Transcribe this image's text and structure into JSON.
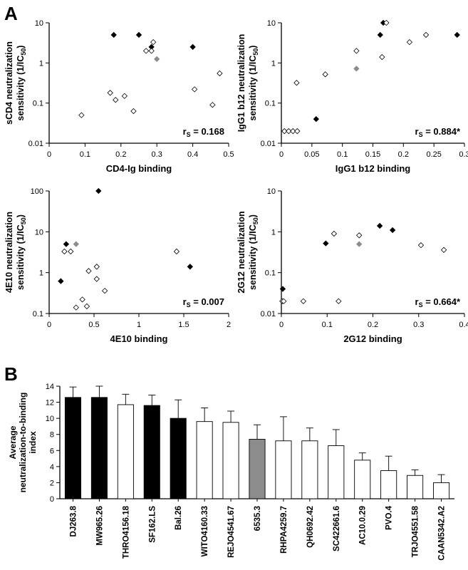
{
  "panels": {
    "A": "A",
    "B": "B"
  },
  "chart_data": [
    {
      "id": "p1",
      "type": "scatter",
      "log_y": true,
      "xlabel": "CD4-Ig binding",
      "ylabel_lines": [
        "sCD4 neutralization",
        "sensitivity (1/IC",
        "50",
        ")"
      ],
      "stat_prefix": "r",
      "stat_sub": "S",
      "stat_value": " = 0.168",
      "xlim": [
        0,
        0.5
      ],
      "xticks": [
        0,
        0.1,
        0.2,
        0.3,
        0.4,
        0.5
      ],
      "xtick_labels": [
        "0",
        "0.1",
        "0.2",
        "0.3",
        "0.4",
        "0.5"
      ],
      "ylim": [
        0.01,
        10
      ],
      "yticks": [
        0.01,
        0.1,
        1,
        10
      ],
      "ytick_labels": [
        "0.01",
        "0.1",
        "1",
        "10"
      ],
      "points": [
        {
          "x": 0.18,
          "y": 5,
          "kind": "black"
        },
        {
          "x": 0.25,
          "y": 5,
          "kind": "black"
        },
        {
          "x": 0.285,
          "y": 2.5,
          "kind": "black"
        },
        {
          "x": 0.4,
          "y": 2.5,
          "kind": "black"
        },
        {
          "x": 0.29,
          "y": 3.3,
          "kind": "open"
        },
        {
          "x": 0.27,
          "y": 2.0,
          "kind": "open"
        },
        {
          "x": 0.285,
          "y": 2.0,
          "kind": "open"
        },
        {
          "x": 0.3,
          "y": 1.25,
          "kind": "grey"
        },
        {
          "x": 0.475,
          "y": 0.55,
          "kind": "open"
        },
        {
          "x": 0.17,
          "y": 0.18,
          "kind": "open"
        },
        {
          "x": 0.21,
          "y": 0.15,
          "kind": "open"
        },
        {
          "x": 0.185,
          "y": 0.12,
          "kind": "open"
        },
        {
          "x": 0.235,
          "y": 0.063,
          "kind": "open"
        },
        {
          "x": 0.09,
          "y": 0.05,
          "kind": "open"
        },
        {
          "x": 0.405,
          "y": 0.22,
          "kind": "open"
        },
        {
          "x": 0.455,
          "y": 0.09,
          "kind": "open"
        }
      ]
    },
    {
      "id": "p2",
      "type": "scatter",
      "log_y": true,
      "xlabel": "IgG1 b12 binding",
      "ylabel_lines": [
        "IgG1 b12 neutralization",
        "sensitivity (1/IC",
        "50",
        ")"
      ],
      "stat_prefix": "r",
      "stat_sub": "S",
      "stat_value": " = 0.884*",
      "xlim": [
        0,
        0.3
      ],
      "xticks": [
        0,
        0.05,
        0.1,
        0.15,
        0.2,
        0.25,
        0.3
      ],
      "xtick_labels": [
        "0",
        "0.05",
        "0.1",
        "0.15",
        "0.2",
        "0.25",
        "0.3"
      ],
      "ylim": [
        0.01,
        10
      ],
      "yticks": [
        0.01,
        0.1,
        1,
        10
      ],
      "ytick_labels": [
        "0.01",
        "0.1",
        "1",
        "10"
      ],
      "points": [
        {
          "x": 0.005,
          "y": 0.02,
          "kind": "open"
        },
        {
          "x": 0.012,
          "y": 0.02,
          "kind": "open"
        },
        {
          "x": 0.019,
          "y": 0.02,
          "kind": "open"
        },
        {
          "x": 0.026,
          "y": 0.02,
          "kind": "open"
        },
        {
          "x": 0.057,
          "y": 0.04,
          "kind": "black"
        },
        {
          "x": 0.025,
          "y": 0.32,
          "kind": "open"
        },
        {
          "x": 0.072,
          "y": 0.52,
          "kind": "open"
        },
        {
          "x": 0.123,
          "y": 0.72,
          "kind": "grey"
        },
        {
          "x": 0.123,
          "y": 2.0,
          "kind": "open"
        },
        {
          "x": 0.162,
          "y": 5.0,
          "kind": "black"
        },
        {
          "x": 0.167,
          "y": 10,
          "kind": "black"
        },
        {
          "x": 0.172,
          "y": 10,
          "kind": "open"
        },
        {
          "x": 0.165,
          "y": 1.4,
          "kind": "open"
        },
        {
          "x": 0.21,
          "y": 3.3,
          "kind": "open"
        },
        {
          "x": 0.237,
          "y": 5.0,
          "kind": "open"
        },
        {
          "x": 0.288,
          "y": 5.0,
          "kind": "black"
        }
      ]
    },
    {
      "id": "p3",
      "type": "scatter",
      "log_y": true,
      "xlabel": "4E10 binding",
      "ylabel_lines": [
        "4E10 neutralization",
        "sensitivity (1/IC",
        "50",
        ")"
      ],
      "stat_prefix": "r",
      "stat_sub": "S",
      "stat_value": " = 0.007",
      "xlim": [
        0,
        2
      ],
      "xticks": [
        0,
        0.5,
        1,
        1.5,
        2
      ],
      "xtick_labels": [
        "0",
        "0.5",
        "1",
        "1.5",
        "2"
      ],
      "ylim": [
        0.1,
        100
      ],
      "yticks": [
        0.1,
        1,
        10,
        100
      ],
      "ytick_labels": [
        "0.1",
        "1",
        "10",
        "100"
      ],
      "points": [
        {
          "x": 0.55,
          "y": 100,
          "kind": "black"
        },
        {
          "x": 0.19,
          "y": 5.0,
          "kind": "black"
        },
        {
          "x": 0.3,
          "y": 5.0,
          "kind": "grey"
        },
        {
          "x": 0.17,
          "y": 3.3,
          "kind": "open"
        },
        {
          "x": 0.24,
          "y": 3.3,
          "kind": "open"
        },
        {
          "x": 0.13,
          "y": 0.62,
          "kind": "black"
        },
        {
          "x": 0.3,
          "y": 0.14,
          "kind": "open"
        },
        {
          "x": 0.37,
          "y": 0.22,
          "kind": "open"
        },
        {
          "x": 0.42,
          "y": 0.15,
          "kind": "open"
        },
        {
          "x": 0.44,
          "y": 1.1,
          "kind": "open"
        },
        {
          "x": 0.53,
          "y": 1.4,
          "kind": "open"
        },
        {
          "x": 0.53,
          "y": 0.7,
          "kind": "open"
        },
        {
          "x": 0.62,
          "y": 0.36,
          "kind": "open"
        },
        {
          "x": 1.42,
          "y": 3.3,
          "kind": "open"
        },
        {
          "x": 1.57,
          "y": 1.4,
          "kind": "black"
        }
      ]
    },
    {
      "id": "p4",
      "type": "scatter",
      "log_y": true,
      "xlabel": "2G12 binding",
      "ylabel_lines": [
        "2G12 neutralization",
        "sensitivity (1/IC",
        "50",
        ")"
      ],
      "stat_prefix": "r",
      "stat_sub": "S",
      "stat_value": " = 0.664*",
      "xlim": [
        0,
        0.4
      ],
      "xticks": [
        0,
        0.1,
        0.2,
        0.3,
        0.4
      ],
      "xtick_labels": [
        "0",
        "0.1",
        "0.2",
        "0.3",
        "0.4"
      ],
      "ylim": [
        0.01,
        10
      ],
      "yticks": [
        0.01,
        0.1,
        1,
        10
      ],
      "ytick_labels": [
        "0.01",
        "0.1",
        "1",
        "10"
      ],
      "points": [
        {
          "x": 0.003,
          "y": 0.04,
          "kind": "black"
        },
        {
          "x": 0.002,
          "y": 0.02,
          "kind": "open"
        },
        {
          "x": 0.005,
          "y": 0.02,
          "kind": "open"
        },
        {
          "x": 0.048,
          "y": 0.02,
          "kind": "open"
        },
        {
          "x": 0.125,
          "y": 0.02,
          "kind": "open"
        },
        {
          "x": 0.097,
          "y": 0.52,
          "kind": "black"
        },
        {
          "x": 0.115,
          "y": 0.9,
          "kind": "open"
        },
        {
          "x": 0.17,
          "y": 0.82,
          "kind": "open"
        },
        {
          "x": 0.17,
          "y": 0.5,
          "kind": "grey"
        },
        {
          "x": 0.215,
          "y": 1.4,
          "kind": "black"
        },
        {
          "x": 0.243,
          "y": 1.1,
          "kind": "black"
        },
        {
          "x": 0.305,
          "y": 0.47,
          "kind": "open"
        },
        {
          "x": 0.355,
          "y": 0.36,
          "kind": "open"
        }
      ]
    },
    {
      "id": "pB",
      "type": "bar",
      "ylabel_lines": [
        "Average",
        "neutralization-to-binding",
        "index"
      ],
      "ylim": [
        0,
        14
      ],
      "yticks": [
        0,
        2,
        4,
        6,
        8,
        10,
        12,
        14
      ],
      "ytick_labels": [
        "0",
        "2",
        "4",
        "6",
        "8",
        "10",
        "12",
        "14"
      ],
      "categories": [
        "DJ263.8",
        "MW965.26",
        "THRO4156.18",
        "SF162.LS",
        "Bal.26",
        "WITO4160.33",
        "REJO4541.67",
        "6535.3",
        "RHPA4259.7",
        "QH0692.42",
        "SC422661.6",
        "AC10.0.29",
        "PVO.4",
        "TRJO4551.58",
        "CAAN5342.A2"
      ],
      "values": [
        12.6,
        12.6,
        11.7,
        11.6,
        10.0,
        9.6,
        9.5,
        7.4,
        7.2,
        7.2,
        6.6,
        4.8,
        3.5,
        2.9,
        2.0
      ],
      "errors": [
        1.3,
        1.4,
        1.3,
        1.3,
        2.3,
        1.7,
        1.4,
        1.8,
        3.0,
        1.6,
        2.0,
        0.9,
        1.8,
        0.7,
        1.0
      ],
      "fills": [
        "black",
        "black",
        "white",
        "black",
        "black",
        "white",
        "white",
        "grey",
        "white",
        "white",
        "white",
        "white",
        "white",
        "white",
        "white"
      ]
    }
  ]
}
